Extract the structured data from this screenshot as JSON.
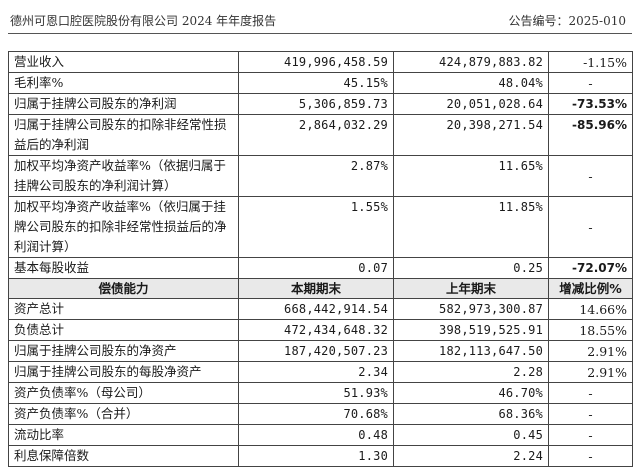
{
  "header": {
    "title": "德州可恩口腔医院股份有限公司 2024 年年度报告",
    "announcement_no": "公告编号：2025-010"
  },
  "table": {
    "profit_rows": [
      {
        "label": "营业收入",
        "current": "419,996,458.59",
        "prior": "424,879,883.82",
        "change": "-1.15%",
        "change_bold": false
      },
      {
        "label": "毛利率%",
        "current": "45.15%",
        "prior": "48.04%",
        "change": "-",
        "change_bold": false
      },
      {
        "label": "归属于挂牌公司股东的净利润",
        "current": "5,306,859.73",
        "prior": "20,051,028.64",
        "change": "-73.53%",
        "change_bold": true
      },
      {
        "label": "归属于挂牌公司股东的扣除非经常性损益后的净利润",
        "current": "2,864,032.29",
        "prior": "20,398,271.54",
        "change": "-85.96%",
        "change_bold": true
      },
      {
        "label": "加权平均净资产收益率%（依据归属于挂牌公司股东的净利润计算）",
        "current": "2.87%",
        "prior": "11.65%",
        "change": "-",
        "change_bold": false
      },
      {
        "label": "加权平均净资产收益率%（依归属于挂牌公司股东的扣除非经常性损益后的净利润计算）",
        "current": "1.55%",
        "prior": "11.85%",
        "change": "-",
        "change_bold": false
      },
      {
        "label": "基本每股收益",
        "current": "0.07",
        "prior": "0.25",
        "change": "-72.07%",
        "change_bold": true
      }
    ],
    "solvency_header": {
      "label": "偿债能力",
      "current": "本期期末",
      "prior": "上年期末",
      "change": "增减比例%"
    },
    "solvency_rows": [
      {
        "label": "资产总计",
        "current": "668,442,914.54",
        "prior": "582,973,300.87",
        "change": "14.66%"
      },
      {
        "label": "负债总计",
        "current": "472,434,648.32",
        "prior": "398,519,525.91",
        "change": "18.55%"
      },
      {
        "label": "归属于挂牌公司股东的净资产",
        "current": "187,420,507.23",
        "prior": "182,113,647.50",
        "change": "2.91%"
      },
      {
        "label": "归属于挂牌公司股东的每股净资产",
        "current": "2.34",
        "prior": "2.28",
        "change": "2.91%"
      },
      {
        "label": "资产负债率%（母公司）",
        "current": "51.93%",
        "prior": "46.70%",
        "change": "-"
      },
      {
        "label": "资产负债率%（合并）",
        "current": "70.68%",
        "prior": "68.36%",
        "change": "-"
      },
      {
        "label": "流动比率",
        "current": "0.48",
        "prior": "0.45",
        "change": "-"
      },
      {
        "label": "利息保障倍数",
        "current": "1.30",
        "prior": "2.24",
        "change": "-"
      }
    ]
  }
}
